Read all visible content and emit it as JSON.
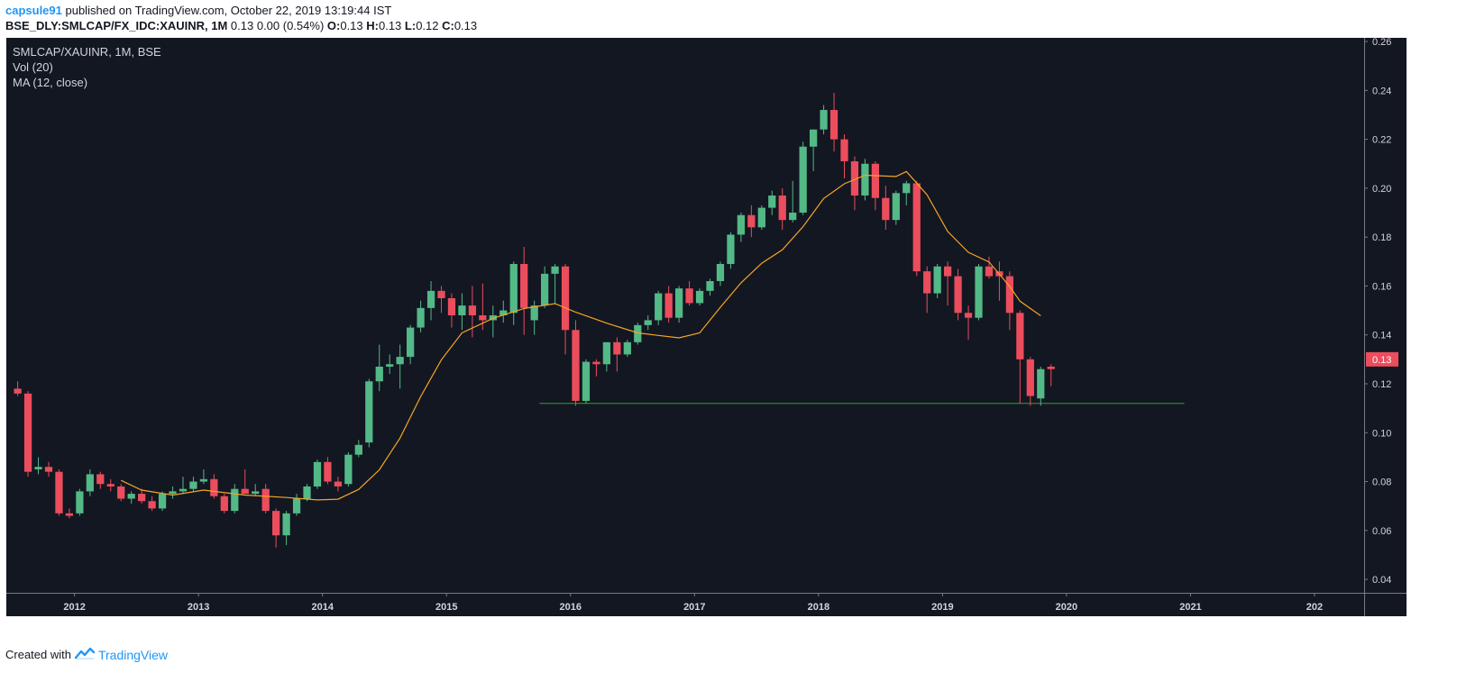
{
  "header": {
    "user": "capsule91",
    "published_text": " published on TradingView.com, October 22, 2019 13:19:44 IST",
    "symbol_full": "BSE_DLY:SMLCAP/FX_IDC:XAUINR, 1M",
    "quote_values": " 0.13 0.00 (0.54%) ",
    "o_label": "O:",
    "o_value": "0.13 ",
    "h_label": "H:",
    "h_value": "0.13 ",
    "l_label": "L:",
    "l_value": "0.12 ",
    "c_label": "C:",
    "c_value": "0.13"
  },
  "legend": {
    "symbol": "SMLCAP/XAUINR, 1M, BSE",
    "vol": "Vol (20)",
    "ma": "MA (12, close)"
  },
  "footer": {
    "created_with": "Created with",
    "brand": "TradingView"
  },
  "colors": {
    "background": "#131722",
    "up": "#53b987",
    "down": "#eb4d5c",
    "ma": "#f5a623",
    "support_line": "#34a02c",
    "axis_text": "#d1d4dc",
    "price_tag_bg": "#eb4d5c"
  },
  "chart_data": {
    "type": "candlestick",
    "title": "SMLCAP/XAUINR, 1M, BSE",
    "x_ticks": [
      "2012",
      "2013",
      "2014",
      "2015",
      "2016",
      "2017",
      "2018",
      "2019",
      "2020",
      "2021",
      "202"
    ],
    "y_ticks": [
      "0.26",
      "0.24",
      "0.22",
      "0.20",
      "0.18",
      "0.16",
      "0.14",
      "0.12",
      "0.10",
      "0.08",
      "0.06",
      "0.04"
    ],
    "xlim": [
      2011.45,
      2022.4
    ],
    "ylim": [
      0.0345,
      0.2615
    ],
    "last_price": "0.13",
    "support_level": {
      "value": 0.112,
      "from": 2015.75,
      "to": 2020.95
    },
    "candles": [
      {
        "t": "2011-07",
        "o": 0.118,
        "h": 0.121,
        "l": 0.115,
        "c": 0.116
      },
      {
        "t": "2011-08",
        "o": 0.116,
        "h": 0.117,
        "l": 0.082,
        "c": 0.084
      },
      {
        "t": "2011-09",
        "o": 0.085,
        "h": 0.09,
        "l": 0.083,
        "c": 0.086
      },
      {
        "t": "2011-10",
        "o": 0.086,
        "h": 0.088,
        "l": 0.082,
        "c": 0.084
      },
      {
        "t": "2011-11",
        "o": 0.084,
        "h": 0.085,
        "l": 0.066,
        "c": 0.067
      },
      {
        "t": "2011-12",
        "o": 0.067,
        "h": 0.069,
        "l": 0.065,
        "c": 0.066
      },
      {
        "t": "2012-01",
        "o": 0.067,
        "h": 0.077,
        "l": 0.066,
        "c": 0.076
      },
      {
        "t": "2012-02",
        "o": 0.076,
        "h": 0.085,
        "l": 0.074,
        "c": 0.083
      },
      {
        "t": "2012-03",
        "o": 0.083,
        "h": 0.084,
        "l": 0.077,
        "c": 0.079
      },
      {
        "t": "2012-04",
        "o": 0.079,
        "h": 0.081,
        "l": 0.076,
        "c": 0.078
      },
      {
        "t": "2012-05",
        "o": 0.078,
        "h": 0.079,
        "l": 0.072,
        "c": 0.073
      },
      {
        "t": "2012-06",
        "o": 0.073,
        "h": 0.076,
        "l": 0.071,
        "c": 0.075
      },
      {
        "t": "2012-07",
        "o": 0.075,
        "h": 0.077,
        "l": 0.071,
        "c": 0.072
      },
      {
        "t": "2012-08",
        "o": 0.072,
        "h": 0.074,
        "l": 0.068,
        "c": 0.069
      },
      {
        "t": "2012-09",
        "o": 0.069,
        "h": 0.076,
        "l": 0.068,
        "c": 0.075
      },
      {
        "t": "2012-10",
        "o": 0.075,
        "h": 0.078,
        "l": 0.073,
        "c": 0.076
      },
      {
        "t": "2012-11",
        "o": 0.076,
        "h": 0.082,
        "l": 0.075,
        "c": 0.077
      },
      {
        "t": "2012-12",
        "o": 0.077,
        "h": 0.082,
        "l": 0.076,
        "c": 0.08
      },
      {
        "t": "2013-01",
        "o": 0.08,
        "h": 0.085,
        "l": 0.079,
        "c": 0.081
      },
      {
        "t": "2013-02",
        "o": 0.081,
        "h": 0.083,
        "l": 0.073,
        "c": 0.074
      },
      {
        "t": "2013-03",
        "o": 0.074,
        "h": 0.075,
        "l": 0.067,
        "c": 0.068
      },
      {
        "t": "2013-04",
        "o": 0.068,
        "h": 0.079,
        "l": 0.067,
        "c": 0.077
      },
      {
        "t": "2013-05",
        "o": 0.077,
        "h": 0.085,
        "l": 0.075,
        "c": 0.075
      },
      {
        "t": "2013-06",
        "o": 0.075,
        "h": 0.079,
        "l": 0.074,
        "c": 0.076
      },
      {
        "t": "2013-07",
        "o": 0.077,
        "h": 0.079,
        "l": 0.067,
        "c": 0.068
      },
      {
        "t": "2013-08",
        "o": 0.068,
        "h": 0.069,
        "l": 0.053,
        "c": 0.058
      },
      {
        "t": "2013-09",
        "o": 0.058,
        "h": 0.068,
        "l": 0.054,
        "c": 0.067
      },
      {
        "t": "2013-10",
        "o": 0.067,
        "h": 0.075,
        "l": 0.066,
        "c": 0.073
      },
      {
        "t": "2013-11",
        "o": 0.073,
        "h": 0.079,
        "l": 0.072,
        "c": 0.078
      },
      {
        "t": "2013-12",
        "o": 0.078,
        "h": 0.089,
        "l": 0.077,
        "c": 0.088
      },
      {
        "t": "2014-01",
        "o": 0.088,
        "h": 0.09,
        "l": 0.079,
        "c": 0.08
      },
      {
        "t": "2014-02",
        "o": 0.08,
        "h": 0.082,
        "l": 0.076,
        "c": 0.078
      },
      {
        "t": "2014-03",
        "o": 0.079,
        "h": 0.092,
        "l": 0.078,
        "c": 0.091
      },
      {
        "t": "2014-04",
        "o": 0.091,
        "h": 0.097,
        "l": 0.09,
        "c": 0.095
      },
      {
        "t": "2014-05",
        "o": 0.096,
        "h": 0.122,
        "l": 0.094,
        "c": 0.121
      },
      {
        "t": "2014-06",
        "o": 0.121,
        "h": 0.136,
        "l": 0.117,
        "c": 0.127
      },
      {
        "t": "2014-07",
        "o": 0.127,
        "h": 0.132,
        "l": 0.124,
        "c": 0.128
      },
      {
        "t": "2014-08",
        "o": 0.128,
        "h": 0.136,
        "l": 0.118,
        "c": 0.131
      },
      {
        "t": "2014-09",
        "o": 0.131,
        "h": 0.144,
        "l": 0.128,
        "c": 0.143
      },
      {
        "t": "2014-10",
        "o": 0.143,
        "h": 0.154,
        "l": 0.141,
        "c": 0.151
      },
      {
        "t": "2014-11",
        "o": 0.151,
        "h": 0.162,
        "l": 0.146,
        "c": 0.158
      },
      {
        "t": "2014-12",
        "o": 0.158,
        "h": 0.16,
        "l": 0.149,
        "c": 0.155
      },
      {
        "t": "2015-01",
        "o": 0.155,
        "h": 0.157,
        "l": 0.143,
        "c": 0.148
      },
      {
        "t": "2015-02",
        "o": 0.148,
        "h": 0.157,
        "l": 0.142,
        "c": 0.152
      },
      {
        "t": "2015-03",
        "o": 0.152,
        "h": 0.16,
        "l": 0.139,
        "c": 0.148
      },
      {
        "t": "2015-04",
        "o": 0.148,
        "h": 0.161,
        "l": 0.142,
        "c": 0.146
      },
      {
        "t": "2015-05",
        "o": 0.146,
        "h": 0.152,
        "l": 0.139,
        "c": 0.148
      },
      {
        "t": "2015-06",
        "o": 0.148,
        "h": 0.154,
        "l": 0.145,
        "c": 0.15
      },
      {
        "t": "2015-07",
        "o": 0.149,
        "h": 0.17,
        "l": 0.144,
        "c": 0.169
      },
      {
        "t": "2015-08",
        "o": 0.169,
        "h": 0.176,
        "l": 0.14,
        "c": 0.151
      },
      {
        "t": "2015-09",
        "o": 0.146,
        "h": 0.154,
        "l": 0.14,
        "c": 0.152
      },
      {
        "t": "2015-10",
        "o": 0.152,
        "h": 0.168,
        "l": 0.151,
        "c": 0.165
      },
      {
        "t": "2015-11",
        "o": 0.165,
        "h": 0.169,
        "l": 0.153,
        "c": 0.168
      },
      {
        "t": "2015-12",
        "o": 0.168,
        "h": 0.169,
        "l": 0.132,
        "c": 0.142
      },
      {
        "t": "2016-01",
        "o": 0.142,
        "h": 0.146,
        "l": 0.111,
        "c": 0.113
      },
      {
        "t": "2016-02",
        "o": 0.113,
        "h": 0.13,
        "l": 0.112,
        "c": 0.129
      },
      {
        "t": "2016-03",
        "o": 0.129,
        "h": 0.13,
        "l": 0.123,
        "c": 0.128
      },
      {
        "t": "2016-04",
        "o": 0.128,
        "h": 0.137,
        "l": 0.125,
        "c": 0.137
      },
      {
        "t": "2016-05",
        "o": 0.137,
        "h": 0.139,
        "l": 0.125,
        "c": 0.132
      },
      {
        "t": "2016-06",
        "o": 0.132,
        "h": 0.138,
        "l": 0.131,
        "c": 0.137
      },
      {
        "t": "2016-07",
        "o": 0.137,
        "h": 0.145,
        "l": 0.136,
        "c": 0.144
      },
      {
        "t": "2016-08",
        "o": 0.144,
        "h": 0.148,
        "l": 0.142,
        "c": 0.146
      },
      {
        "t": "2016-09",
        "o": 0.146,
        "h": 0.158,
        "l": 0.144,
        "c": 0.157
      },
      {
        "t": "2016-10",
        "o": 0.157,
        "h": 0.16,
        "l": 0.145,
        "c": 0.147
      },
      {
        "t": "2016-11",
        "o": 0.147,
        "h": 0.16,
        "l": 0.145,
        "c": 0.159
      },
      {
        "t": "2016-12",
        "o": 0.159,
        "h": 0.162,
        "l": 0.152,
        "c": 0.153
      },
      {
        "t": "2017-01",
        "o": 0.153,
        "h": 0.159,
        "l": 0.152,
        "c": 0.158
      },
      {
        "t": "2017-02",
        "o": 0.158,
        "h": 0.163,
        "l": 0.156,
        "c": 0.162
      },
      {
        "t": "2017-03",
        "o": 0.162,
        "h": 0.17,
        "l": 0.16,
        "c": 0.169
      },
      {
        "t": "2017-04",
        "o": 0.169,
        "h": 0.182,
        "l": 0.167,
        "c": 0.181
      },
      {
        "t": "2017-05",
        "o": 0.181,
        "h": 0.19,
        "l": 0.178,
        "c": 0.189
      },
      {
        "t": "2017-06",
        "o": 0.189,
        "h": 0.193,
        "l": 0.18,
        "c": 0.184
      },
      {
        "t": "2017-07",
        "o": 0.184,
        "h": 0.193,
        "l": 0.183,
        "c": 0.192
      },
      {
        "t": "2017-08",
        "o": 0.192,
        "h": 0.199,
        "l": 0.189,
        "c": 0.197
      },
      {
        "t": "2017-09",
        "o": 0.197,
        "h": 0.2,
        "l": 0.183,
        "c": 0.187
      },
      {
        "t": "2017-10",
        "o": 0.187,
        "h": 0.203,
        "l": 0.186,
        "c": 0.19
      },
      {
        "t": "2017-11",
        "o": 0.19,
        "h": 0.219,
        "l": 0.189,
        "c": 0.217
      },
      {
        "t": "2017-12",
        "o": 0.217,
        "h": 0.224,
        "l": 0.207,
        "c": 0.224
      },
      {
        "t": "2018-01",
        "o": 0.224,
        "h": 0.234,
        "l": 0.222,
        "c": 0.232
      },
      {
        "t": "2018-02",
        "o": 0.232,
        "h": 0.239,
        "l": 0.215,
        "c": 0.22
      },
      {
        "t": "2018-03",
        "o": 0.22,
        "h": 0.222,
        "l": 0.204,
        "c": 0.211
      },
      {
        "t": "2018-04",
        "o": 0.211,
        "h": 0.213,
        "l": 0.191,
        "c": 0.197
      },
      {
        "t": "2018-05",
        "o": 0.197,
        "h": 0.212,
        "l": 0.195,
        "c": 0.21
      },
      {
        "t": "2018-06",
        "o": 0.21,
        "h": 0.211,
        "l": 0.191,
        "c": 0.196
      },
      {
        "t": "2018-07",
        "o": 0.196,
        "h": 0.201,
        "l": 0.183,
        "c": 0.187
      },
      {
        "t": "2018-08",
        "o": 0.187,
        "h": 0.199,
        "l": 0.185,
        "c": 0.198
      },
      {
        "t": "2018-09",
        "o": 0.198,
        "h": 0.203,
        "l": 0.193,
        "c": 0.202
      },
      {
        "t": "2018-10",
        "o": 0.202,
        "h": 0.203,
        "l": 0.164,
        "c": 0.166
      },
      {
        "t": "2018-11",
        "o": 0.166,
        "h": 0.168,
        "l": 0.149,
        "c": 0.157
      },
      {
        "t": "2018-12",
        "o": 0.157,
        "h": 0.169,
        "l": 0.155,
        "c": 0.168
      },
      {
        "t": "2019-01",
        "o": 0.168,
        "h": 0.17,
        "l": 0.152,
        "c": 0.164
      },
      {
        "t": "2019-02",
        "o": 0.164,
        "h": 0.167,
        "l": 0.146,
        "c": 0.149
      },
      {
        "t": "2019-03",
        "o": 0.149,
        "h": 0.152,
        "l": 0.138,
        "c": 0.147
      },
      {
        "t": "2019-04",
        "o": 0.147,
        "h": 0.169,
        "l": 0.146,
        "c": 0.168
      },
      {
        "t": "2019-05",
        "o": 0.168,
        "h": 0.172,
        "l": 0.163,
        "c": 0.164
      },
      {
        "t": "2019-06",
        "o": 0.166,
        "h": 0.17,
        "l": 0.154,
        "c": 0.164
      },
      {
        "t": "2019-07",
        "o": 0.164,
        "h": 0.166,
        "l": 0.142,
        "c": 0.149
      },
      {
        "t": "2019-08",
        "o": 0.149,
        "h": 0.15,
        "l": 0.112,
        "c": 0.13
      },
      {
        "t": "2019-09",
        "o": 0.13,
        "h": 0.131,
        "l": 0.111,
        "c": 0.115
      },
      {
        "t": "2019-10",
        "o": 0.114,
        "h": 0.127,
        "l": 0.111,
        "c": 0.126
      },
      {
        "t": "2019-11",
        "o": 0.127,
        "h": 0.128,
        "l": 0.119,
        "c": 0.126
      }
    ],
    "ma_12": [
      {
        "t": "2012-05",
        "v": 0.0805
      },
      {
        "t": "2012-07",
        "v": 0.0765
      },
      {
        "t": "2012-10",
        "v": 0.0745
      },
      {
        "t": "2013-01",
        "v": 0.0765
      },
      {
        "t": "2013-05",
        "v": 0.0745
      },
      {
        "t": "2013-09",
        "v": 0.0735
      },
      {
        "t": "2013-12",
        "v": 0.0725
      },
      {
        "t": "2014-02",
        "v": 0.0728
      },
      {
        "t": "2014-04",
        "v": 0.0768
      },
      {
        "t": "2014-06",
        "v": 0.0848
      },
      {
        "t": "2014-08",
        "v": 0.0978
      },
      {
        "t": "2014-10",
        "v": 0.1148
      },
      {
        "t": "2014-12",
        "v": 0.1298
      },
      {
        "t": "2015-02",
        "v": 0.1408
      },
      {
        "t": "2015-05",
        "v": 0.1468
      },
      {
        "t": "2015-08",
        "v": 0.1508
      },
      {
        "t": "2015-11",
        "v": 0.1528
      },
      {
        "t": "2016-01",
        "v": 0.1493
      },
      {
        "t": "2016-04",
        "v": 0.1448
      },
      {
        "t": "2016-07",
        "v": 0.1408
      },
      {
        "t": "2016-09",
        "v": 0.1398
      },
      {
        "t": "2016-11",
        "v": 0.1388
      },
      {
        "t": "2017-01",
        "v": 0.1408
      },
      {
        "t": "2017-03",
        "v": 0.1513
      },
      {
        "t": "2017-05",
        "v": 0.1613
      },
      {
        "t": "2017-07",
        "v": 0.1693
      },
      {
        "t": "2017-09",
        "v": 0.1748
      },
      {
        "t": "2017-11",
        "v": 0.1843
      },
      {
        "t": "2018-01",
        "v": 0.1958
      },
      {
        "t": "2018-03",
        "v": 0.2018
      },
      {
        "t": "2018-05",
        "v": 0.2053
      },
      {
        "t": "2018-08",
        "v": 0.2048
      },
      {
        "t": "2018-09",
        "v": 0.2068
      },
      {
        "t": "2018-11",
        "v": 0.1973
      },
      {
        "t": "2019-01",
        "v": 0.1823
      },
      {
        "t": "2019-03",
        "v": 0.1738
      },
      {
        "t": "2019-05",
        "v": 0.1698
      },
      {
        "t": "2019-07",
        "v": 0.1598
      },
      {
        "t": "2019-08",
        "v": 0.1538
      },
      {
        "t": "2019-10",
        "v": 0.1478
      }
    ]
  }
}
